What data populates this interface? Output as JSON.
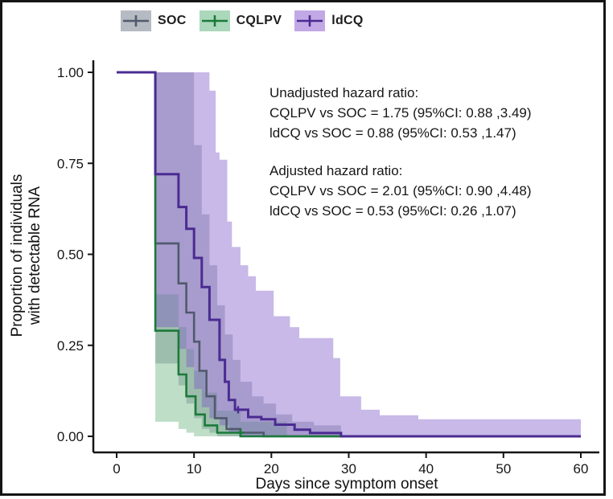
{
  "legend": {
    "items": [
      {
        "label": "SOC",
        "color_key": "soc"
      },
      {
        "label": "CQLPV",
        "color_key": "cqlpv"
      },
      {
        "label": "ldCQ",
        "color_key": "ldcq"
      }
    ]
  },
  "annotation": {
    "unadjusted": {
      "title": "Unadjusted hazard ratio:",
      "lines": [
        "CQLPV vs SOC = 1.75 (95%CI: 0.88 ,3.49)",
        "ldCQ vs SOC = 0.88 (95%CI: 0.53 ,1.47)"
      ]
    },
    "adjusted": {
      "title": "Adjusted hazard ratio:",
      "lines": [
        "CQLPV vs SOC = 2.01 (95%CI: 0.90 ,4.48)",
        "ldCQ vs SOC = 0.53 (95%CI: 0.26 ,1.07)"
      ]
    }
  },
  "axes": {
    "x_label": "Days since symptom onset",
    "y_label_line1": "Proportion of individuals",
    "y_label_line2": "with detectable RNA"
  },
  "colors": {
    "soc_line": "#4f5a6b",
    "soc_fill": "#7b8496",
    "soc_key": "#b6bac2",
    "cqlpv_line": "#1b7a3a",
    "cqlpv_fill": "#57a76c",
    "cqlpv_key": "#abd8bb",
    "ldcq_line": "#4a2b91",
    "ldcq_fill": "#7d59c8",
    "ldcq_key": "#c2a9e6",
    "axis": "#151515"
  },
  "chart_data": {
    "type": "line",
    "subtype": "kaplan-meier-step",
    "title": "",
    "xlabel": "Days since symptom onset",
    "ylabel": "Proportion of individuals with detectable RNA",
    "x_range": [
      0,
      60
    ],
    "y_range": [
      0,
      1
    ],
    "grid": false,
    "legend_position": "top-center",
    "x_ticks": [
      {
        "v": 0,
        "label": "0"
      },
      {
        "v": 10,
        "label": "10"
      },
      {
        "v": 20,
        "label": "20"
      },
      {
        "v": 30,
        "label": "30"
      },
      {
        "v": 40,
        "label": "40"
      },
      {
        "v": 50,
        "label": "50"
      },
      {
        "v": 60,
        "label": "60"
      }
    ],
    "y_ticks": [
      {
        "v": 0,
        "label": "0.00"
      },
      {
        "v": 0.25,
        "label": "0.25"
      },
      {
        "v": 0.5,
        "label": "0.50"
      },
      {
        "v": 0.75,
        "label": "0.75"
      },
      {
        "v": 1,
        "label": "1.00"
      }
    ],
    "series": [
      {
        "name": "SOC",
        "color": "soc",
        "steps": [
          [
            0,
            1
          ],
          [
            5,
            0.53
          ],
          [
            8,
            0.42
          ],
          [
            9,
            0.34
          ],
          [
            10,
            0.26
          ],
          [
            10.7,
            0.18
          ],
          [
            11.6,
            0.11
          ],
          [
            12.7,
            0.05
          ],
          [
            14.2,
            0.02
          ],
          [
            16,
            0.01
          ],
          [
            19,
            0
          ]
        ],
        "end": 37
      },
      {
        "name": "CQLPV",
        "color": "cqlpv",
        "steps": [
          [
            0,
            1
          ],
          [
            5,
            0.29
          ],
          [
            8,
            0.17
          ],
          [
            9,
            0.11
          ],
          [
            10.2,
            0.06
          ],
          [
            11.4,
            0.03
          ],
          [
            13,
            0.01
          ],
          [
            16,
            0
          ]
        ],
        "end": 60
      },
      {
        "name": "ldCQ",
        "color": "ldcq",
        "steps": [
          [
            0,
            1
          ],
          [
            5,
            0.72
          ],
          [
            8,
            0.63
          ],
          [
            9,
            0.57
          ],
          [
            10,
            0.49
          ],
          [
            11,
            0.41
          ],
          [
            12,
            0.32
          ],
          [
            13.3,
            0.21
          ],
          [
            14,
            0.15
          ],
          [
            14.5,
            0.1
          ],
          [
            15.3,
            0.073
          ],
          [
            17,
            0.053
          ],
          [
            18.7,
            0.047
          ],
          [
            20.5,
            0.032
          ],
          [
            23,
            0.018
          ],
          [
            25,
            0.009
          ],
          [
            29,
            0
          ]
        ],
        "end": 60
      }
    ],
    "bands": [
      {
        "name": "SOC 95% CI",
        "color": "soc",
        "opacity": 0.42,
        "upper": [
          [
            5,
            1
          ],
          [
            10,
            0.8
          ],
          [
            11,
            0.61
          ],
          [
            12,
            0.47
          ],
          [
            13,
            0.36
          ],
          [
            14,
            0.28
          ],
          [
            15,
            0.21
          ],
          [
            16,
            0.15
          ],
          [
            17.5,
            0.11
          ],
          [
            19,
            0.09
          ],
          [
            20.6,
            0.06
          ],
          [
            22.7,
            0.04
          ],
          [
            25.5,
            0.03
          ]
        ],
        "lower": [
          [
            5,
            0.2
          ],
          [
            8,
            0.14
          ],
          [
            9,
            0.09
          ],
          [
            10,
            0.05
          ],
          [
            11,
            0.02
          ],
          [
            12,
            0.01
          ],
          [
            13,
            0
          ]
        ],
        "end": 29
      },
      {
        "name": "CQLPV 95% CI",
        "color": "cqlpv",
        "opacity": 0.38,
        "upper": [
          [
            5,
            0.39
          ],
          [
            8,
            0.3
          ],
          [
            9,
            0.24
          ],
          [
            10,
            0.18
          ],
          [
            11.4,
            0.12
          ],
          [
            13,
            0.07
          ],
          [
            16,
            0.04
          ]
        ],
        "lower": [
          [
            5,
            0.04
          ],
          [
            8,
            0.02
          ],
          [
            9,
            0.01
          ],
          [
            10,
            0
          ]
        ],
        "end": 22
      },
      {
        "name": "ldCQ 95% CI",
        "color": "ldcq",
        "opacity": 0.42,
        "upper": [
          [
            5,
            1
          ],
          [
            12,
            0.95
          ],
          [
            12.8,
            0.78
          ],
          [
            13.3,
            0.76
          ],
          [
            14.3,
            0.59
          ],
          [
            14.9,
            0.52
          ],
          [
            16,
            0.47
          ],
          [
            17,
            0.44
          ],
          [
            18,
            0.4
          ],
          [
            20.3,
            0.33
          ],
          [
            22.4,
            0.3
          ],
          [
            23.6,
            0.27
          ],
          [
            28,
            0.215
          ],
          [
            28.9,
            0.11
          ],
          [
            31.6,
            0.073
          ],
          [
            34,
            0.058
          ],
          [
            39,
            0.047
          ]
        ],
        "lower": [
          [
            5,
            0.3
          ],
          [
            8,
            0.24
          ],
          [
            9,
            0.19
          ],
          [
            10,
            0.13
          ],
          [
            11,
            0.08
          ],
          [
            12,
            0.05
          ],
          [
            13.3,
            0.03
          ],
          [
            14.5,
            0.01
          ],
          [
            16,
            0
          ]
        ],
        "end": 60
      }
    ],
    "censor_marks": [
      {
        "series": "ldCQ",
        "x": 15.7,
        "y": 0.073,
        "color": "ldcq"
      },
      {
        "series": "CQLPV",
        "x": 16,
        "y": 0.01,
        "color": "cqlpv"
      }
    ]
  }
}
